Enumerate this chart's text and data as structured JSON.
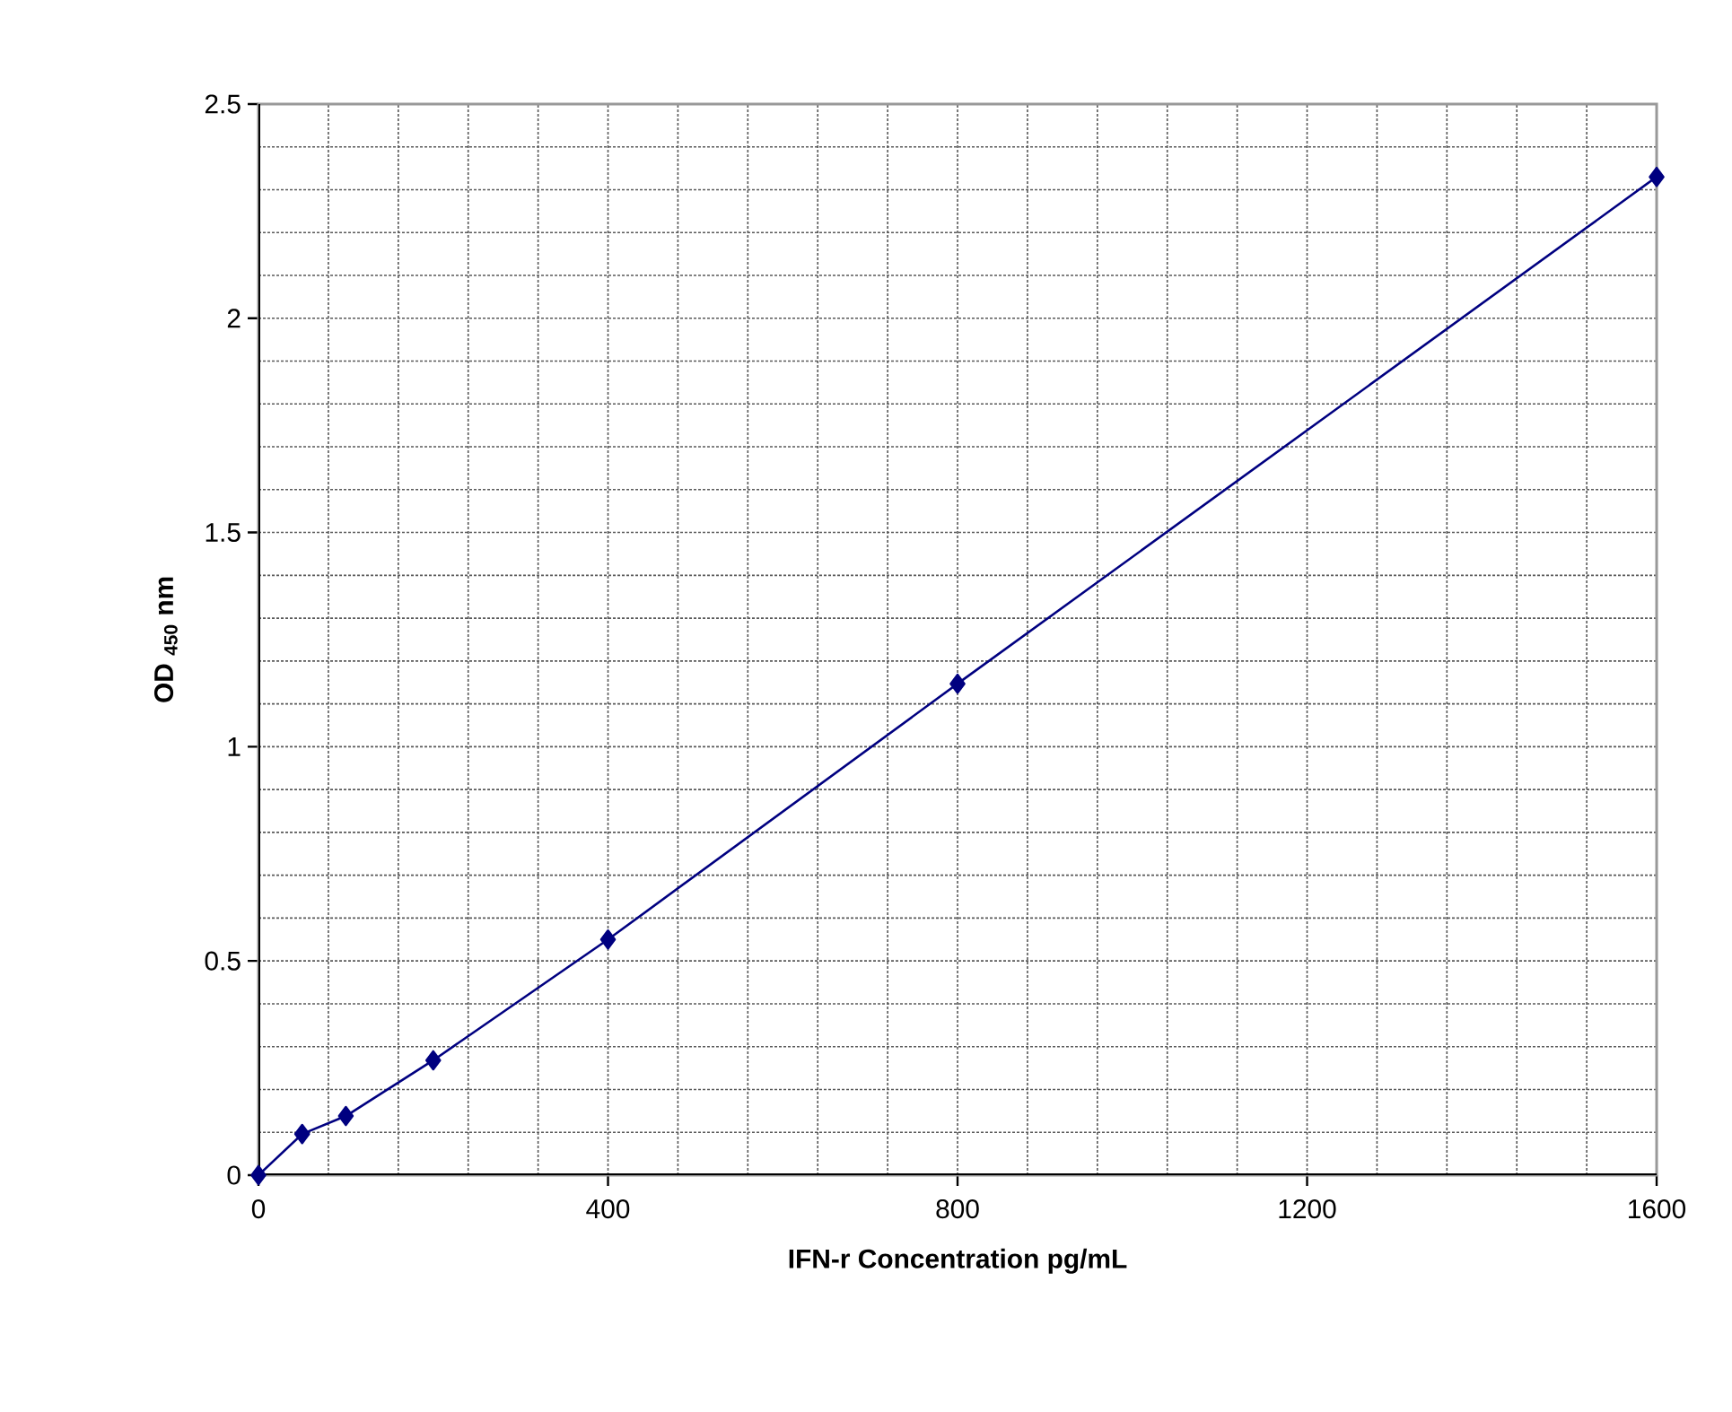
{
  "chart_data": {
    "type": "line",
    "xlabel": "IFN-r Concentration pg/mL",
    "ylabel": "OD $_{450}$ nm",
    "x": [
      0,
      50,
      100,
      200,
      400,
      800,
      1600
    ],
    "series": [
      {
        "color": "#000080",
        "values": [
          0.0,
          0.096,
          0.138,
          0.268,
          0.55,
          1.147,
          2.33
        ]
      }
    ],
    "xlim": [
      0,
      1600
    ],
    "ylim": [
      0,
      2.5
    ],
    "xticks": [
      0,
      400,
      800,
      1200,
      1600
    ],
    "yticks": [
      0,
      0.5,
      1,
      1.5,
      2,
      2.5
    ],
    "grid": true,
    "marker": "diamond",
    "line_style": "solid"
  }
}
